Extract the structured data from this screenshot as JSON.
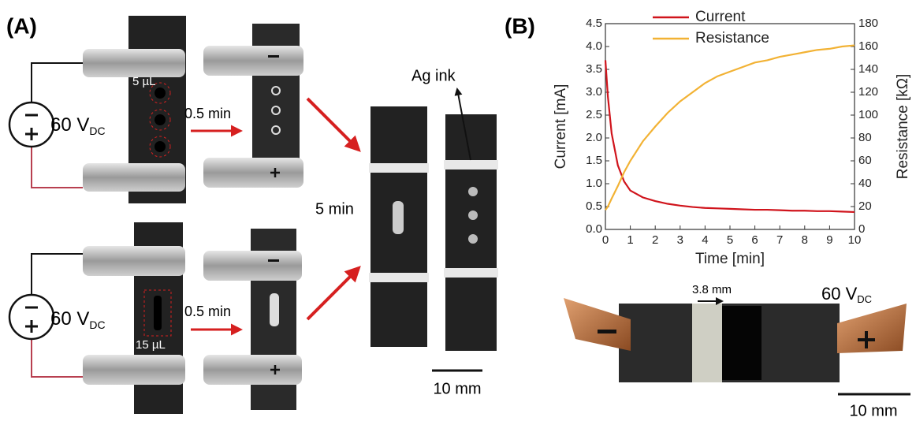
{
  "panel_a": {
    "label": "(A)",
    "top_volume": "5 µL",
    "top_time": "0.5 min",
    "top_voltage": "60 V",
    "top_voltage_sub": "DC",
    "bottom_volume": "15 µL",
    "bottom_time": "0.5 min",
    "bottom_voltage": "60 V",
    "bottom_voltage_sub": "DC",
    "final_time": "5 min",
    "ink_label": "Ag ink",
    "scale_bar": "10 mm"
  },
  "panel_b": {
    "label": "(B)",
    "gap_label": "3.8 mm",
    "voltage": "60 V",
    "voltage_sub": "DC",
    "scale_bar": "10 mm"
  },
  "chart_data": {
    "type": "line",
    "xlabel": "Time [min]",
    "ylabel": "Current [mA]",
    "y2label": "Resistance [kΩ]",
    "x": [
      0,
      0.1,
      0.25,
      0.5,
      0.75,
      1,
      1.5,
      2,
      2.5,
      3,
      3.5,
      4,
      4.5,
      5,
      5.5,
      6,
      6.5,
      7,
      7.5,
      8,
      8.5,
      9,
      9.5,
      10
    ],
    "series": [
      {
        "name": "Current",
        "color": "#d0141c",
        "values": [
          3.7,
          2.9,
          2.1,
          1.4,
          1.05,
          0.85,
          0.7,
          0.62,
          0.56,
          0.52,
          0.49,
          0.47,
          0.46,
          0.45,
          0.44,
          0.43,
          0.43,
          0.42,
          0.41,
          0.41,
          0.4,
          0.4,
          0.39,
          0.38
        ]
      },
      {
        "name": "Resistance",
        "color": "#f2b234",
        "axis": "y2",
        "values": [
          17,
          20,
          27,
          38,
          50,
          60,
          77,
          90,
          102,
          112,
          120,
          128,
          134,
          138,
          142,
          146,
          148,
          151,
          153,
          155,
          157,
          158,
          160,
          161
        ]
      }
    ],
    "xlim": [
      0,
      10
    ],
    "xticks": [
      0,
      1,
      2,
      3,
      4,
      5,
      6,
      7,
      8,
      9,
      10
    ],
    "ylim": [
      0,
      4.5
    ],
    "yticks": [
      {
        "value": 0,
        "label": "0.0"
      },
      0.5,
      {
        "value": 1,
        "label": "1.0"
      },
      1.5,
      {
        "value": 2,
        "label": "2.0"
      },
      2.5,
      {
        "value": 3,
        "label": "3.0"
      },
      3.5,
      {
        "value": 4,
        "label": "4.0"
      },
      4.5
    ],
    "y2lim": [
      0,
      180
    ],
    "y2ticks": [
      0,
      20,
      40,
      60,
      80,
      100,
      120,
      140,
      160,
      180
    ],
    "legend": "top"
  }
}
